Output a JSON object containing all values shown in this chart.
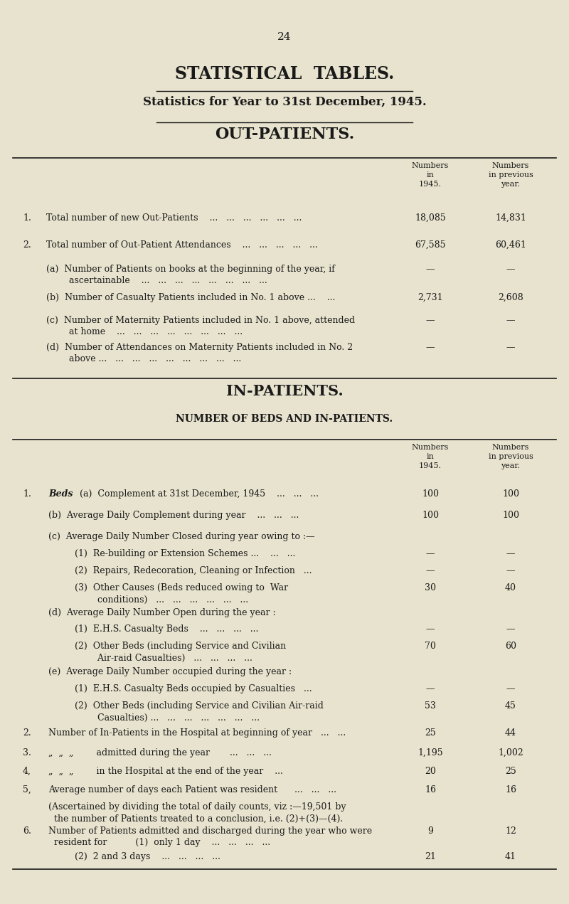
{
  "bg_color": "#e8e3ce",
  "text_color": "#1a1a1a",
  "page_number": "24",
  "title1": "STATISTICAL  TABLES.",
  "title2": "Statistics for Year to 31st December, 1945.",
  "section1_title": "OUT-PATIENTS.",
  "section2_title": "IN-PATIENTS.",
  "section2_subtitle": "NUMBER OF BEDS AND IN-PATIENTS.",
  "figw": 8.0,
  "figh": 12.71,
  "dpi": 100
}
